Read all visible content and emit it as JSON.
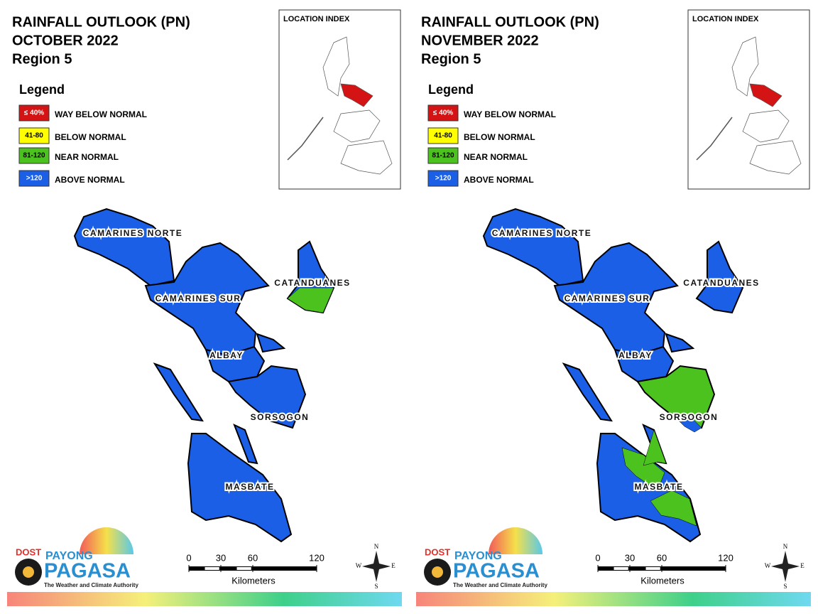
{
  "panels": [
    {
      "title": [
        "RAINFALL OUTLOOK (PN)",
        "OCTOBER 2022",
        "Region 5"
      ],
      "legend_title": "Legend",
      "legend": [
        {
          "swatch": "≤ 40%",
          "label": "WAY BELOW NORMAL",
          "color": "#d41414",
          "text_color": "#ffffff"
        },
        {
          "swatch": "41-80",
          "label": "BELOW NORMAL",
          "color": "#ffff00",
          "text_color": "#000000"
        },
        {
          "swatch": "81-120",
          "label": "NEAR NORMAL",
          "color": "#4cc21e",
          "text_color": "#000000"
        },
        {
          "swatch": ">120",
          "label": "ABOVE NORMAL",
          "color": "#1a5fe6",
          "text_color": "#ffffff"
        }
      ],
      "location_index": "LOCATION INDEX",
      "provinces": [
        {
          "name": "CAMARINES NORTE",
          "color": "#1a5fe6"
        },
        {
          "name": "CAMARINES SUR",
          "color": "#1a5fe6"
        },
        {
          "name": "ALBAY",
          "color": "#1a5fe6"
        },
        {
          "name": "SORSOGON",
          "color": "#1a5fe6"
        },
        {
          "name": "CATANDUANES",
          "color": "#1a5fe6"
        },
        {
          "name": "MASBATE",
          "color": "#1a5fe6"
        }
      ],
      "scale": {
        "ticks": [
          0,
          30,
          60,
          120
        ],
        "unit": "Kilometers"
      },
      "compass": [
        "N",
        "E",
        "S",
        "W"
      ],
      "logo": {
        "agency": "DOST",
        "brand": "PAYONG",
        "name": "PAGASA",
        "tagline": "The Weather and Climate Authority"
      }
    },
    {
      "title": [
        "RAINFALL OUTLOOK (PN)",
        "NOVEMBER 2022",
        "Region 5"
      ],
      "legend_title": "Legend",
      "legend": [
        {
          "swatch": "≤ 40%",
          "label": "WAY BELOW NORMAL",
          "color": "#d41414",
          "text_color": "#ffffff"
        },
        {
          "swatch": "41-80",
          "label": "BELOW NORMAL",
          "color": "#ffff00",
          "text_color": "#000000"
        },
        {
          "swatch": "81-120",
          "label": "NEAR NORMAL",
          "color": "#4cc21e",
          "text_color": "#000000"
        },
        {
          "swatch": ">120",
          "label": "ABOVE NORMAL",
          "color": "#1a5fe6",
          "text_color": "#ffffff"
        }
      ],
      "location_index": "LOCATION INDEX",
      "provinces": [
        {
          "name": "CAMARINES NORTE",
          "color": "#1a5fe6"
        },
        {
          "name": "CAMARINES SUR",
          "color": "#1a5fe6"
        },
        {
          "name": "ALBAY",
          "color": "#1a5fe6"
        },
        {
          "name": "SORSOGON",
          "color": "#4cc21e"
        },
        {
          "name": "CATANDUANES",
          "color": "#1a5fe6"
        },
        {
          "name": "MASBATE",
          "color": "#1a5fe6"
        }
      ],
      "scale": {
        "ticks": [
          0,
          30,
          60,
          120
        ],
        "unit": "Kilometers"
      },
      "compass": [
        "N",
        "E",
        "S",
        "W"
      ],
      "logo": {
        "agency": "DOST",
        "brand": "PAYONG",
        "name": "PAGASA",
        "tagline": "The Weather and Climate Authority"
      }
    }
  ]
}
